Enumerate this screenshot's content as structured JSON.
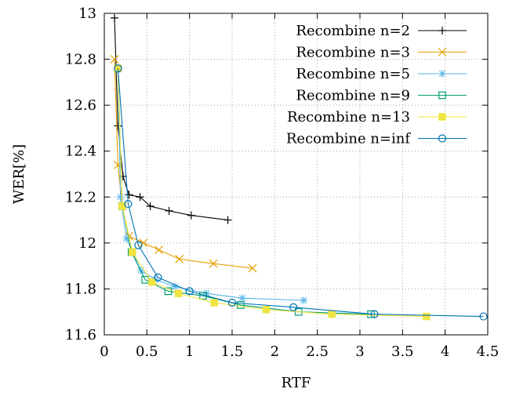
{
  "chart_data": {
    "type": "line",
    "xlabel": "RTF",
    "ylabel": "WER[%]",
    "xlim": [
      0,
      4.5
    ],
    "ylim": [
      11.6,
      13
    ],
    "xticks": [
      "0",
      "0.5",
      "1",
      "1.5",
      "2",
      "2.5",
      "3",
      "3.5",
      "4",
      "4.5"
    ],
    "yticks": [
      "11.6",
      "11.8",
      "12",
      "12.2",
      "12.4",
      "12.6",
      "12.8",
      "13"
    ],
    "grid": "dotted",
    "legend_position": "top-right",
    "series": [
      {
        "name": "Recombine n=2",
        "color": "#000000",
        "marker": "plus",
        "points": [
          [
            0.12,
            12.98
          ],
          [
            0.16,
            12.51
          ],
          [
            0.22,
            12.29
          ],
          [
            0.29,
            12.21
          ],
          [
            0.42,
            12.2
          ],
          [
            0.54,
            12.16
          ],
          [
            0.76,
            12.14
          ],
          [
            1.02,
            12.12
          ],
          [
            1.45,
            12.1
          ]
        ]
      },
      {
        "name": "Recombine n=3",
        "color": "#e69f00",
        "marker": "cross",
        "points": [
          [
            0.12,
            12.8
          ],
          [
            0.16,
            12.34
          ],
          [
            0.21,
            12.16
          ],
          [
            0.29,
            12.03
          ],
          [
            0.46,
            12.0
          ],
          [
            0.64,
            11.97
          ],
          [
            0.88,
            11.93
          ],
          [
            1.28,
            11.91
          ],
          [
            1.74,
            11.89
          ]
        ]
      },
      {
        "name": "Recombine n=5",
        "color": "#56b4e9",
        "marker": "star",
        "points": [
          [
            0.16,
            12.76
          ],
          [
            0.19,
            12.2
          ],
          [
            0.26,
            12.02
          ],
          [
            0.43,
            11.88
          ],
          [
            0.6,
            11.84
          ],
          [
            0.83,
            11.81
          ],
          [
            1.2,
            11.78
          ],
          [
            1.62,
            11.76
          ],
          [
            2.34,
            11.75
          ]
        ]
      },
      {
        "name": "Recombine n=9",
        "color": "#009e73",
        "marker": "square-open",
        "points": [
          [
            0.16,
            12.76
          ],
          [
            0.21,
            12.16
          ],
          [
            0.32,
            11.96
          ],
          [
            0.48,
            11.84
          ],
          [
            0.75,
            11.79
          ],
          [
            1.16,
            11.77
          ],
          [
            1.6,
            11.73
          ],
          [
            2.28,
            11.7
          ],
          [
            3.13,
            11.69
          ]
        ]
      },
      {
        "name": "Recombine n=13",
        "color": "#f0e442",
        "marker": "square-filled",
        "points": [
          [
            0.16,
            12.76
          ],
          [
            0.21,
            12.16
          ],
          [
            0.33,
            11.96
          ],
          [
            0.56,
            11.83
          ],
          [
            0.87,
            11.78
          ],
          [
            1.29,
            11.74
          ],
          [
            1.9,
            11.71
          ],
          [
            2.67,
            11.69
          ],
          [
            3.78,
            11.68
          ]
        ]
      },
      {
        "name": "Recombine n=inf",
        "color": "#0072b2",
        "marker": "circle-open",
        "points": [
          [
            0.16,
            12.76
          ],
          [
            0.28,
            12.17
          ],
          [
            0.4,
            11.99
          ],
          [
            0.63,
            11.85
          ],
          [
            1.0,
            11.79
          ],
          [
            1.5,
            11.74
          ],
          [
            2.22,
            11.72
          ],
          [
            3.17,
            11.69
          ],
          [
            4.45,
            11.68
          ]
        ]
      }
    ]
  }
}
